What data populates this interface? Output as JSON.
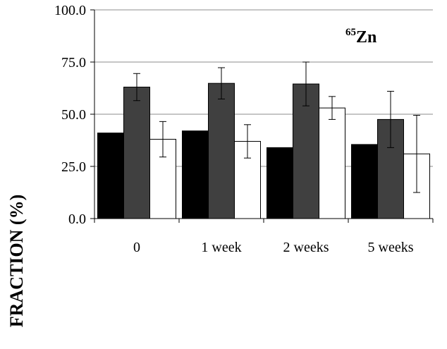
{
  "chart_data": {
    "type": "bar",
    "annotation": {
      "superscript": "65",
      "main": "Zn"
    },
    "ylabel": "FRACTION (%)",
    "xlabel": "",
    "ylim": [
      0,
      100
    ],
    "yticks": [
      "0.0",
      "25.0",
      "50.0",
      "75.0",
      "100.0"
    ],
    "ytick_values": [
      0,
      25,
      50,
      75,
      100
    ],
    "grid": true,
    "categories": [
      "0",
      "1 week",
      "2 weeks",
      "5 weeks"
    ],
    "series": [
      {
        "values": [
          41,
          42,
          34,
          35.5
        ],
        "error": [
          null,
          null,
          null,
          null
        ],
        "color": "#000000"
      },
      {
        "values": [
          63,
          64.8,
          64.5,
          47.5
        ],
        "error": [
          6.5,
          7.5,
          10.5,
          13.5
        ],
        "color": "#404040"
      },
      {
        "values": [
          38,
          37,
          53,
          31
        ],
        "error": [
          8.5,
          8,
          5.5,
          18.5
        ],
        "color": "#ffffff"
      }
    ]
  }
}
